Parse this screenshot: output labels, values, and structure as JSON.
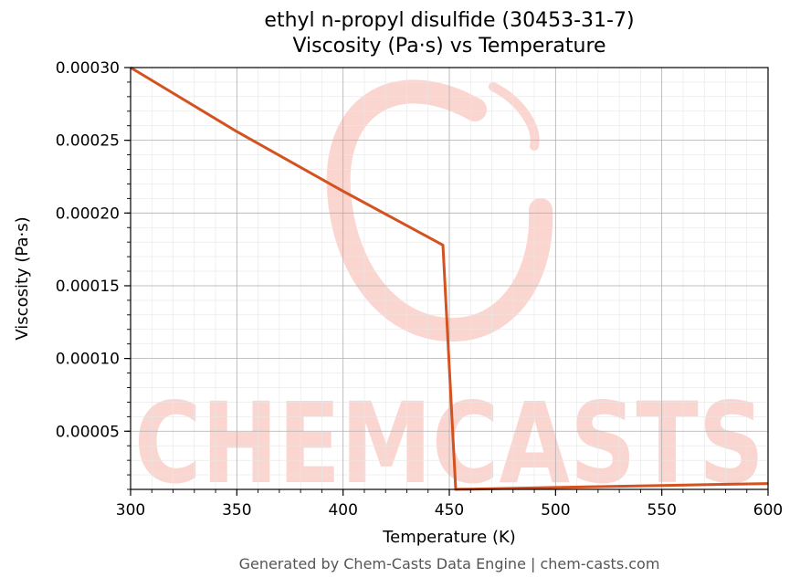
{
  "chart_data": {
    "type": "line",
    "title": "ethyl n-propyl disulfide (30453-31-7)",
    "subtitle": "Viscosity (Pa·s) vs Temperature",
    "xlabel": "Temperature (K)",
    "ylabel": "Viscosity (Pa·s)",
    "xlim": [
      300,
      600
    ],
    "ylim": [
      1e-05,
      0.0003
    ],
    "xticks": [
      300,
      350,
      400,
      450,
      500,
      550,
      600
    ],
    "xtick_labels": [
      "300",
      "350",
      "400",
      "450",
      "500",
      "550",
      "600"
    ],
    "yticks": [
      5e-05,
      0.0001,
      0.00015,
      0.0002,
      0.00025,
      0.0003
    ],
    "ytick_labels": [
      "0.00005",
      "0.00010",
      "0.00015",
      "0.00020",
      "0.00025",
      "0.00030"
    ],
    "grid": true,
    "series": [
      {
        "color": "#d4521f",
        "x": [
          300,
          350,
          400,
          447,
          453,
          500,
          550,
          600
        ],
        "y": [
          0.0003,
          0.000256,
          0.000215,
          0.000178,
          1e-05,
          1.13e-05,
          1.27e-05,
          1.4e-05
        ]
      }
    ]
  },
  "watermark": {
    "text": "CHEMCASTS",
    "color": "#fbd6d0"
  },
  "footer": "Generated by Chem-Casts Data Engine | chem-casts.com"
}
